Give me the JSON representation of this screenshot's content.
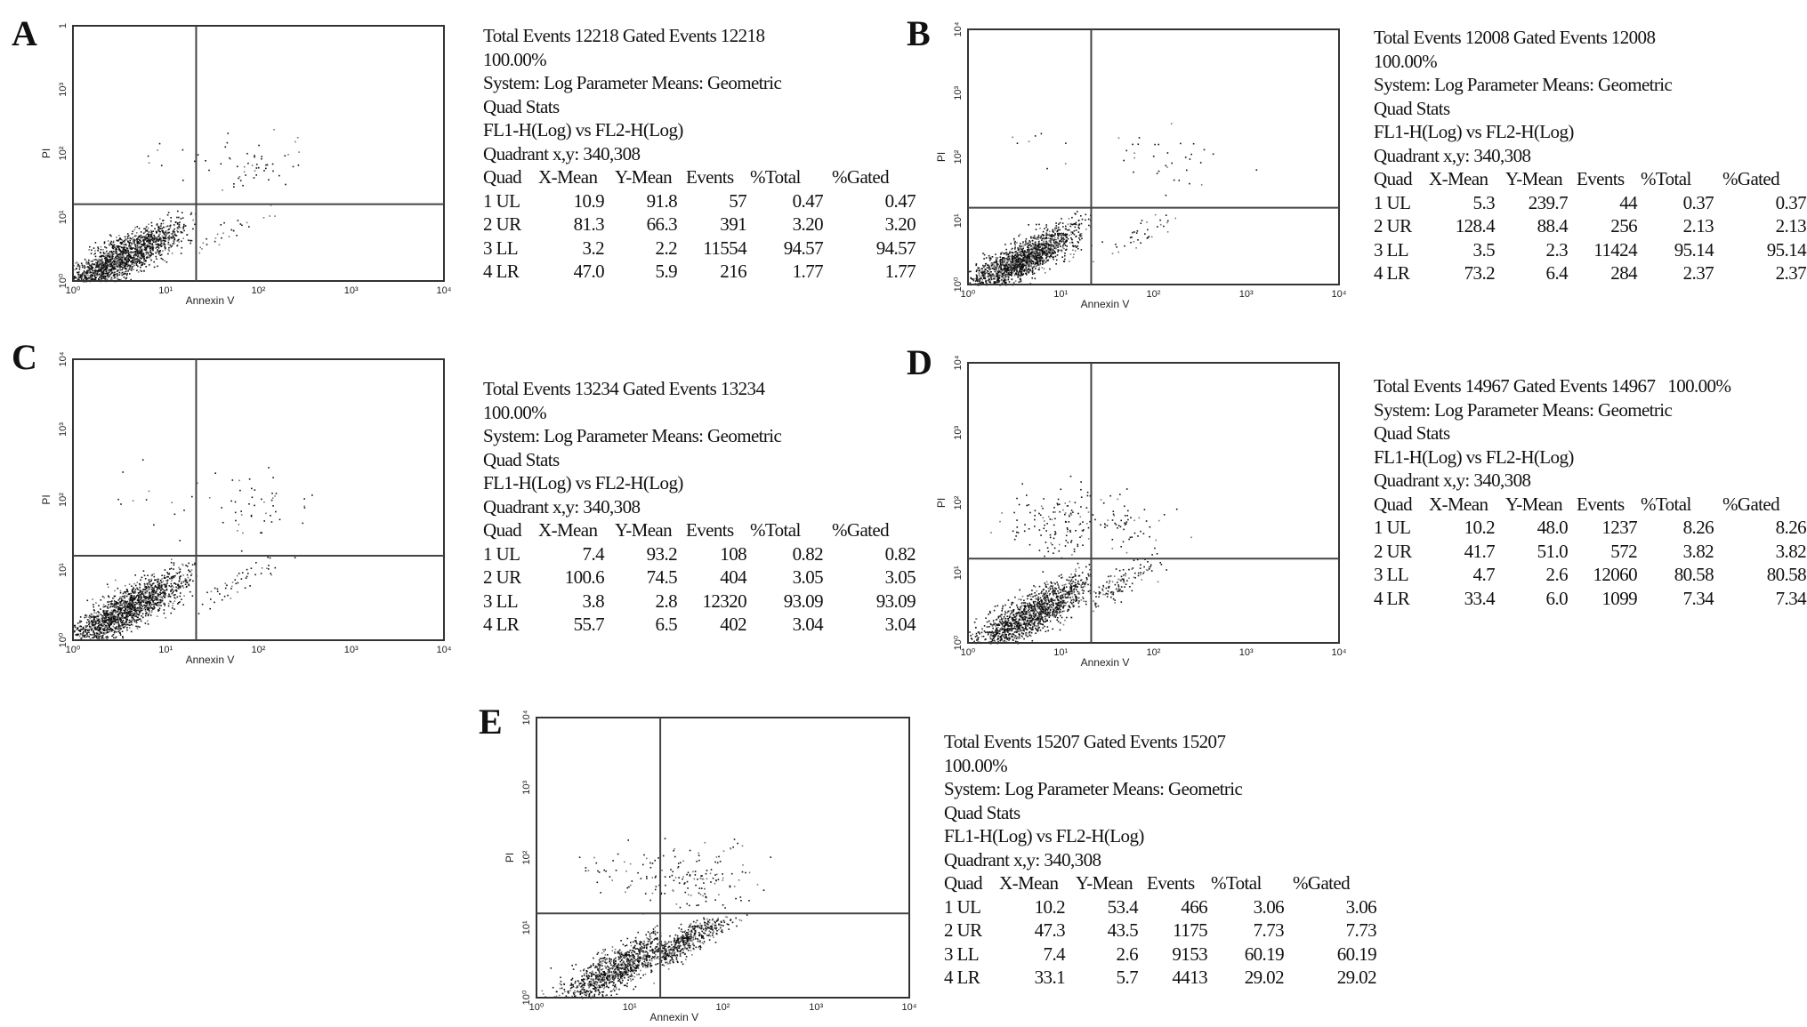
{
  "chart_data": [
    {
      "panel": "A",
      "type": "scatter",
      "xlabel": "Annexin V",
      "ylabel": "PI",
      "x_ticks": [
        "10⁰",
        "10¹",
        "10²",
        "10³",
        "10⁴"
      ],
      "y_ticks": [
        "10⁰",
        "10¹",
        "10²",
        "10³",
        "1"
      ],
      "x_scale": "log",
      "y_scale": "log",
      "xlim": [
        1,
        10000
      ],
      "ylim": [
        1,
        10000
      ],
      "quadrant_xy": [
        340,
        308
      ],
      "header": [
        "Total Events 12218 Gated Events 12218",
        "100.00%",
        "System: Log Parameter Means: Geometric",
        "Quad Stats",
        "FL1-H(Log) vs FL2-H(Log)",
        "Quadrant x,y: 340,308"
      ],
      "columns": [
        "Quad",
        "X-Mean",
        "Y-Mean",
        "Events",
        "%Total",
        "%Gated"
      ],
      "rows": [
        [
          "1 UL",
          "10.9",
          "91.8",
          "57",
          "0.47",
          "0.47"
        ],
        [
          "2 UR",
          "81.3",
          "66.3",
          "391",
          "3.20",
          "3.20"
        ],
        [
          "3 LL",
          "3.2",
          "2.2",
          "11554",
          "94.57",
          "94.57"
        ],
        [
          "4 LR",
          "47.0",
          "5.9",
          "216",
          "1.77",
          "1.77"
        ]
      ]
    },
    {
      "panel": "B",
      "type": "scatter",
      "xlabel": "Annexin V",
      "ylabel": "PI",
      "x_ticks": [
        "10⁰",
        "10¹",
        "10²",
        "10³",
        "10⁴"
      ],
      "y_ticks": [
        "10⁰",
        "10¹",
        "10²",
        "10³",
        "10⁴"
      ],
      "x_scale": "log",
      "y_scale": "log",
      "xlim": [
        1,
        10000
      ],
      "ylim": [
        1,
        10000
      ],
      "quadrant_xy": [
        340,
        308
      ],
      "header": [
        "Total Events 12008 Gated Events 12008",
        "100.00%",
        "System: Log Parameter Means: Geometric",
        "Quad Stats",
        "FL1-H(Log) vs FL2-H(Log)",
        "Quadrant x,y: 340,308"
      ],
      "columns": [
        "Quad",
        "X-Mean",
        "Y-Mean",
        "Events",
        "%Total",
        "%Gated"
      ],
      "rows": [
        [
          "1 UL",
          "5.3",
          "239.7",
          "44",
          "0.37",
          "0.37"
        ],
        [
          "2 UR",
          "128.4",
          "88.4",
          "256",
          "2.13",
          "2.13"
        ],
        [
          "3 LL",
          "3.5",
          "2.3",
          "11424",
          "95.14",
          "95.14"
        ],
        [
          "4 LR",
          "73.2",
          "6.4",
          "284",
          "2.37",
          "2.37"
        ]
      ]
    },
    {
      "panel": "C",
      "type": "scatter",
      "xlabel": "Annexin V",
      "ylabel": "PI",
      "x_ticks": [
        "10⁰",
        "10¹",
        "10²",
        "10³",
        "10⁴"
      ],
      "y_ticks": [
        "10⁰",
        "10¹",
        "10²",
        "10³",
        "10⁴"
      ],
      "x_scale": "log",
      "y_scale": "log",
      "xlim": [
        1,
        10000
      ],
      "ylim": [
        1,
        10000
      ],
      "quadrant_xy": [
        340,
        308
      ],
      "header": [
        "Total Events 13234 Gated Events 13234",
        "100.00%",
        "System: Log Parameter Means: Geometric",
        "Quad Stats",
        "FL1-H(Log) vs FL2-H(Log)",
        "Quadrant x,y: 340,308"
      ],
      "columns": [
        "Quad",
        "X-Mean",
        "Y-Mean",
        "Events",
        "%Total",
        "%Gated"
      ],
      "rows": [
        [
          "1 UL",
          "7.4",
          "93.2",
          "108",
          "0.82",
          "0.82"
        ],
        [
          "2 UR",
          "100.6",
          "74.5",
          "404",
          "3.05",
          "3.05"
        ],
        [
          "3 LL",
          "3.8",
          "2.8",
          "12320",
          "93.09",
          "93.09"
        ],
        [
          "4 LR",
          "55.7",
          "6.5",
          "402",
          "3.04",
          "3.04"
        ]
      ]
    },
    {
      "panel": "D",
      "type": "scatter",
      "xlabel": "Annexin V",
      "ylabel": "PI",
      "x_ticks": [
        "10⁰",
        "10¹",
        "10²",
        "10³",
        "10⁴"
      ],
      "y_ticks": [
        "10⁰",
        "10¹",
        "10²",
        "10³",
        "10⁴"
      ],
      "x_scale": "log",
      "y_scale": "log",
      "xlim": [
        1,
        10000
      ],
      "ylim": [
        1,
        10000
      ],
      "quadrant_xy": [
        340,
        308
      ],
      "header": [
        "Total Events 14967 Gated Events 14967   100.00%",
        "System: Log Parameter Means: Geometric",
        "Quad Stats",
        "FL1-H(Log) vs FL2-H(Log)",
        "Quadrant x,y: 340,308"
      ],
      "columns": [
        "Quad",
        "X-Mean",
        "Y-Mean",
        "Events",
        "%Total",
        "%Gated"
      ],
      "rows": [
        [
          "1 UL",
          "10.2",
          "48.0",
          "1237",
          "8.26",
          "8.26"
        ],
        [
          "2 UR",
          "41.7",
          "51.0",
          "572",
          "3.82",
          "3.82"
        ],
        [
          "3 LL",
          "4.7",
          "2.6",
          "12060",
          "80.58",
          "80.58"
        ],
        [
          "4 LR",
          "33.4",
          "6.0",
          "1099",
          "7.34",
          "7.34"
        ]
      ]
    },
    {
      "panel": "E",
      "type": "scatter",
      "xlabel": "Annexin V",
      "ylabel": "PI",
      "x_ticks": [
        "10⁰",
        "10¹",
        "10²",
        "10³",
        "10⁴"
      ],
      "y_ticks": [
        "10⁰",
        "10¹",
        "10²",
        "10³",
        "10⁴"
      ],
      "x_scale": "log",
      "y_scale": "log",
      "xlim": [
        1,
        10000
      ],
      "ylim": [
        1,
        10000
      ],
      "quadrant_xy": [
        340,
        308
      ],
      "header": [
        "Total Events 15207 Gated Events 15207",
        "100.00%",
        "System: Log Parameter Means: Geometric",
        "Quad Stats",
        "FL1-H(Log) vs FL2-H(Log)",
        "Quadrant x,y: 340,308"
      ],
      "columns": [
        "Quad",
        "X-Mean",
        "Y-Mean",
        "Events",
        "%Total",
        "%Gated"
      ],
      "rows": [
        [
          "1 UL",
          "10.2",
          "53.4",
          "466",
          "3.06",
          "3.06"
        ],
        [
          "2 UR",
          "47.3",
          "43.5",
          "1175",
          "7.73",
          "7.73"
        ],
        [
          "3 LL",
          "7.4",
          "2.6",
          "9153",
          "60.19",
          "60.19"
        ],
        [
          "4 LR",
          "33.1",
          "5.7",
          "4413",
          "29.02",
          "29.02"
        ]
      ]
    }
  ]
}
